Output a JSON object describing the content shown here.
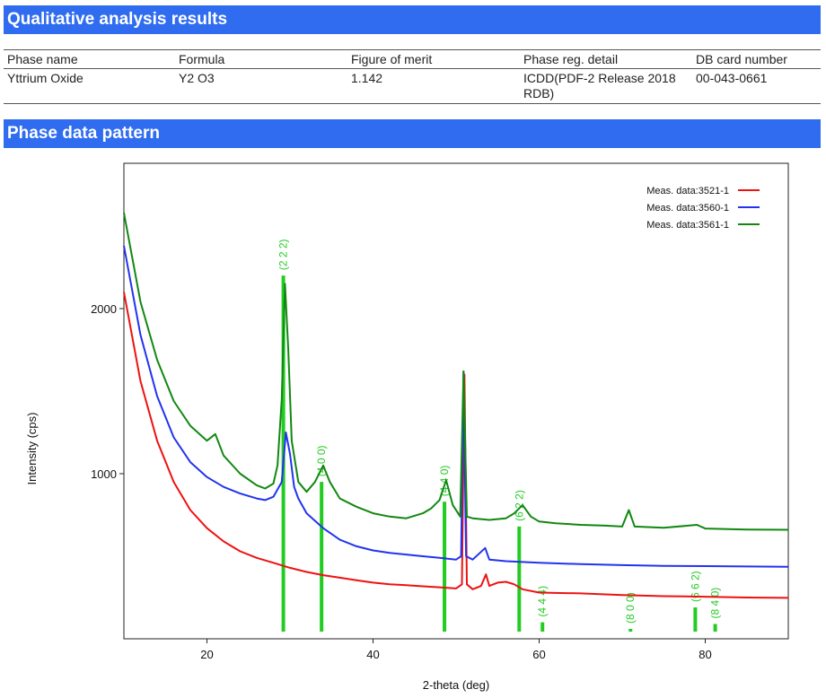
{
  "sections": {
    "qualitative_title": "Qualitative analysis results",
    "pattern_title": "Phase data pattern"
  },
  "table": {
    "headers": [
      "Phase name",
      "Formula",
      "Figure of merit",
      "Phase reg. detail",
      "DB card number"
    ],
    "rows": [
      [
        "Yttrium Oxide",
        "Y2 O3",
        "1.142",
        "ICDD(PDF-2  Release 2018 RDB)",
        "00-043-0661"
      ]
    ]
  },
  "colors": {
    "header_bar": "#2f6cf0",
    "series": [
      "#ee1111",
      "#2233ee",
      "#118811"
    ],
    "reference_lines": "#22cc22"
  },
  "chart_data": {
    "type": "line",
    "xlabel": "2-theta (deg)",
    "ylabel": "Intensity (cps)",
    "xlim": [
      10,
      90
    ],
    "ylim": [
      0,
      2880
    ],
    "xticks": [
      20,
      40,
      60,
      80
    ],
    "yticks": [
      1000,
      2000
    ],
    "legend_position": "top-right",
    "series": [
      {
        "name": "Meas. data:3521-1",
        "x": [
          10,
          12,
          14,
          16,
          18,
          20,
          22,
          24,
          26,
          28,
          30,
          32,
          34,
          36,
          38,
          40,
          42,
          44,
          46,
          48,
          50,
          50.7,
          51,
          51.3,
          52,
          53,
          53.6,
          54,
          55,
          56,
          57,
          58,
          60,
          65,
          70,
          75,
          80,
          85,
          90
        ],
        "y": [
          2100,
          1560,
          1200,
          950,
          780,
          670,
          590,
          530,
          490,
          460,
          430,
          405,
          385,
          370,
          355,
          340,
          330,
          325,
          318,
          312,
          305,
          330,
          1600,
          330,
          300,
          320,
          390,
          320,
          340,
          345,
          330,
          300,
          280,
          275,
          265,
          258,
          255,
          250,
          248
        ]
      },
      {
        "name": "Meas. data:3560-1",
        "x": [
          10,
          12,
          14,
          16,
          18,
          20,
          22,
          24,
          26,
          27,
          28,
          29,
          29.5,
          30,
          30.5,
          31,
          32,
          34,
          36,
          38,
          40,
          42,
          44,
          46,
          48,
          50,
          50.6,
          50.9,
          51.2,
          52,
          53.5,
          54,
          56,
          60,
          65,
          70,
          75,
          80,
          85,
          90
        ],
        "y": [
          2380,
          1840,
          1470,
          1220,
          1070,
          980,
          920,
          880,
          850,
          840,
          860,
          950,
          1250,
          1120,
          920,
          850,
          760,
          670,
          600,
          560,
          535,
          520,
          510,
          500,
          490,
          480,
          500,
          1620,
          500,
          480,
          550,
          480,
          470,
          460,
          452,
          446,
          442,
          440,
          438,
          436
        ]
      },
      {
        "name": "Meas. data:3561-1",
        "x": [
          10,
          12,
          14,
          16,
          18,
          20,
          21,
          22,
          24,
          26,
          27,
          28,
          28.5,
          29,
          29.4,
          29.8,
          30.2,
          31,
          32,
          33,
          34,
          34.8,
          36,
          38,
          40,
          42,
          44,
          46,
          47,
          48,
          48.8,
          49.6,
          50.5,
          50.9,
          51.3,
          52,
          54,
          56,
          57,
          58,
          59,
          60,
          62,
          65,
          68,
          70,
          70.8,
          71.5,
          75,
          79,
          80,
          85,
          90
        ],
        "y": [
          2580,
          2040,
          1690,
          1440,
          1290,
          1200,
          1240,
          1110,
          1000,
          930,
          910,
          940,
          1050,
          1450,
          2150,
          1750,
          1200,
          950,
          890,
          950,
          1050,
          950,
          850,
          800,
          760,
          740,
          730,
          760,
          790,
          840,
          960,
          810,
          740,
          1620,
          740,
          730,
          720,
          730,
          760,
          810,
          740,
          710,
          700,
          690,
          685,
          680,
          780,
          680,
          672,
          690,
          668,
          662,
          660
        ]
      }
    ],
    "reference_lines": [
      {
        "x": 29.2,
        "y": 2200,
        "label": "(2 2 2)"
      },
      {
        "x": 33.8,
        "y": 950,
        "label": "(4 0 0)"
      },
      {
        "x": 48.6,
        "y": 830,
        "label": "(4 4 0)"
      },
      {
        "x": 57.6,
        "y": 680,
        "label": "(6 2 2)"
      },
      {
        "x": 60.4,
        "y": 100,
        "label": "(4 4 4)"
      },
      {
        "x": 71.0,
        "y": 60,
        "label": "(8 0 0)"
      },
      {
        "x": 78.8,
        "y": 190,
        "label": "(6 6 2)"
      },
      {
        "x": 81.2,
        "y": 90,
        "label": "(8 4 0)"
      }
    ]
  }
}
